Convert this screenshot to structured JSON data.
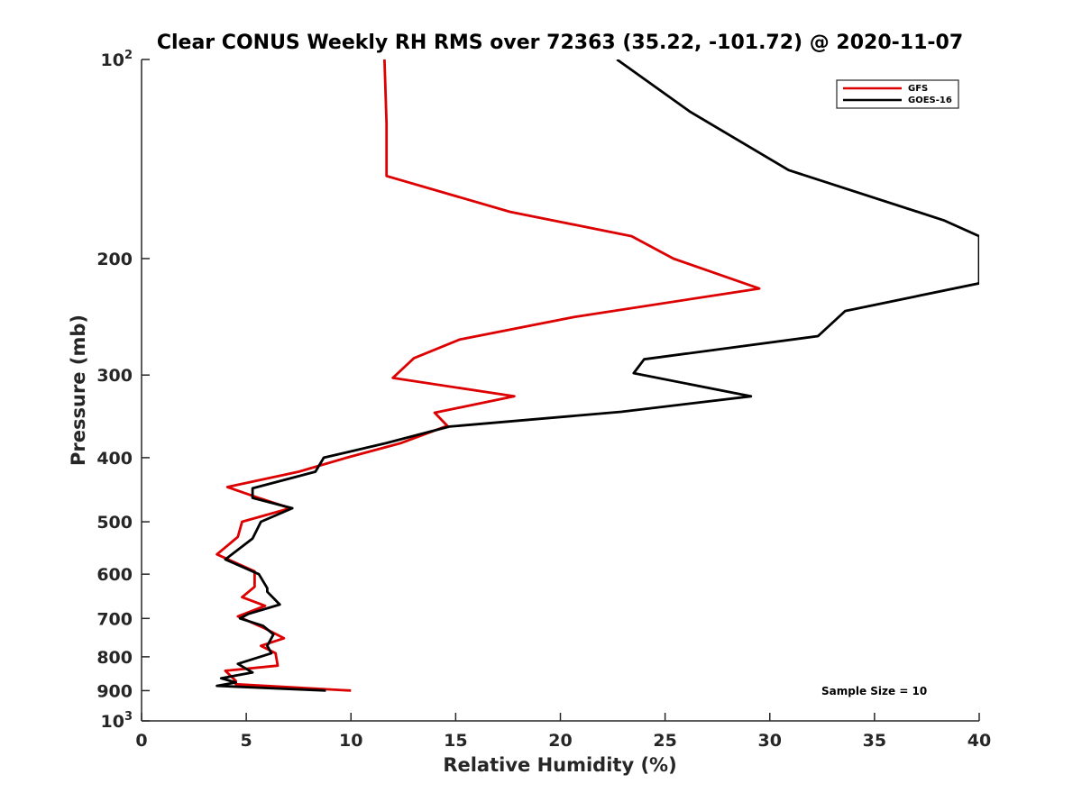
{
  "chart_data": {
    "type": "line",
    "title": "Clear CONUS Weekly RH RMS over 72363 (35.22, -101.72) @ 2020-11-07",
    "xlabel": "Relative Humidity (%)",
    "ylabel": "Pressure (mb)",
    "xlim": [
      0,
      40
    ],
    "ylim": [
      100,
      1000
    ],
    "y_scale": "log",
    "y_reversed": true,
    "x_ticks": [
      {
        "value": 0,
        "label": "0"
      },
      {
        "value": 5,
        "label": "5"
      },
      {
        "value": 10,
        "label": "10"
      },
      {
        "value": 15,
        "label": "15"
      },
      {
        "value": 20,
        "label": "20"
      },
      {
        "value": 25,
        "label": "25"
      },
      {
        "value": 30,
        "label": "30"
      },
      {
        "value": 35,
        "label": "35"
      },
      {
        "value": 40,
        "label": "40"
      }
    ],
    "y_ticks": [
      {
        "value": 100,
        "base": "10",
        "exp": "2"
      },
      {
        "value": 200,
        "label": "200"
      },
      {
        "value": 300,
        "label": "300"
      },
      {
        "value": 400,
        "label": "400"
      },
      {
        "value": 500,
        "label": "500"
      },
      {
        "value": 600,
        "label": "600"
      },
      {
        "value": 700,
        "label": "700"
      },
      {
        "value": 800,
        "label": "800"
      },
      {
        "value": 900,
        "label": "900"
      },
      {
        "value": 1000,
        "base": "10",
        "exp": "3"
      }
    ],
    "legend_position": "top-right",
    "annotation": "Sample Size = 10",
    "series": [
      {
        "name": "GFS",
        "color": "#dd0000",
        "points": [
          [
            11.6,
            100
          ],
          [
            11.7,
            125
          ],
          [
            11.7,
            150
          ],
          [
            17.6,
            170
          ],
          [
            23.4,
            185
          ],
          [
            25.4,
            200
          ],
          [
            29.5,
            222
          ],
          [
            20.7,
            245
          ],
          [
            15.2,
            265
          ],
          [
            13.0,
            283
          ],
          [
            12.0,
            303
          ],
          [
            17.8,
            323
          ],
          [
            14.0,
            342
          ],
          [
            14.6,
            358
          ],
          [
            12.4,
            380
          ],
          [
            9.8,
            400
          ],
          [
            7.5,
            420
          ],
          [
            4.1,
            443
          ],
          [
            5.5,
            459
          ],
          [
            7.1,
            477
          ],
          [
            4.8,
            500
          ],
          [
            4.6,
            527
          ],
          [
            3.6,
            560
          ],
          [
            5.4,
            594
          ],
          [
            5.4,
            627
          ],
          [
            4.8,
            650
          ],
          [
            5.9,
            670
          ],
          [
            4.6,
            695
          ],
          [
            5.9,
            725
          ],
          [
            6.8,
            750
          ],
          [
            5.7,
            770
          ],
          [
            6.4,
            790
          ],
          [
            6.5,
            825
          ],
          [
            4.0,
            840
          ],
          [
            4.5,
            870
          ],
          [
            4.5,
            880
          ],
          [
            10.0,
            900
          ]
        ]
      },
      {
        "name": "GOES-16",
        "color": "#000000",
        "points": [
          [
            22.7,
            100
          ],
          [
            26.2,
            120
          ],
          [
            30.9,
            147
          ],
          [
            38.3,
            175
          ],
          [
            40.0,
            185
          ],
          [
            40.0,
            218
          ],
          [
            33.6,
            240
          ],
          [
            32.3,
            262
          ],
          [
            24.0,
            284
          ],
          [
            23.5,
            298
          ],
          [
            29.1,
            323
          ],
          [
            22.9,
            341
          ],
          [
            14.7,
            359
          ],
          [
            11.7,
            380
          ],
          [
            8.7,
            400
          ],
          [
            8.3,
            420
          ],
          [
            5.3,
            445
          ],
          [
            5.3,
            460
          ],
          [
            7.2,
            477
          ],
          [
            5.7,
            500
          ],
          [
            5.3,
            530
          ],
          [
            4.0,
            570
          ],
          [
            5.6,
            600
          ],
          [
            6.0,
            630
          ],
          [
            6.0,
            638
          ],
          [
            6.6,
            667
          ],
          [
            5.1,
            689
          ],
          [
            4.7,
            700
          ],
          [
            5.8,
            718
          ],
          [
            6.3,
            740
          ],
          [
            6.0,
            770
          ],
          [
            6.2,
            790
          ],
          [
            4.6,
            820
          ],
          [
            5.3,
            845
          ],
          [
            3.8,
            862
          ],
          [
            4.5,
            875
          ],
          [
            3.6,
            885
          ],
          [
            8.8,
            900
          ]
        ]
      }
    ]
  }
}
